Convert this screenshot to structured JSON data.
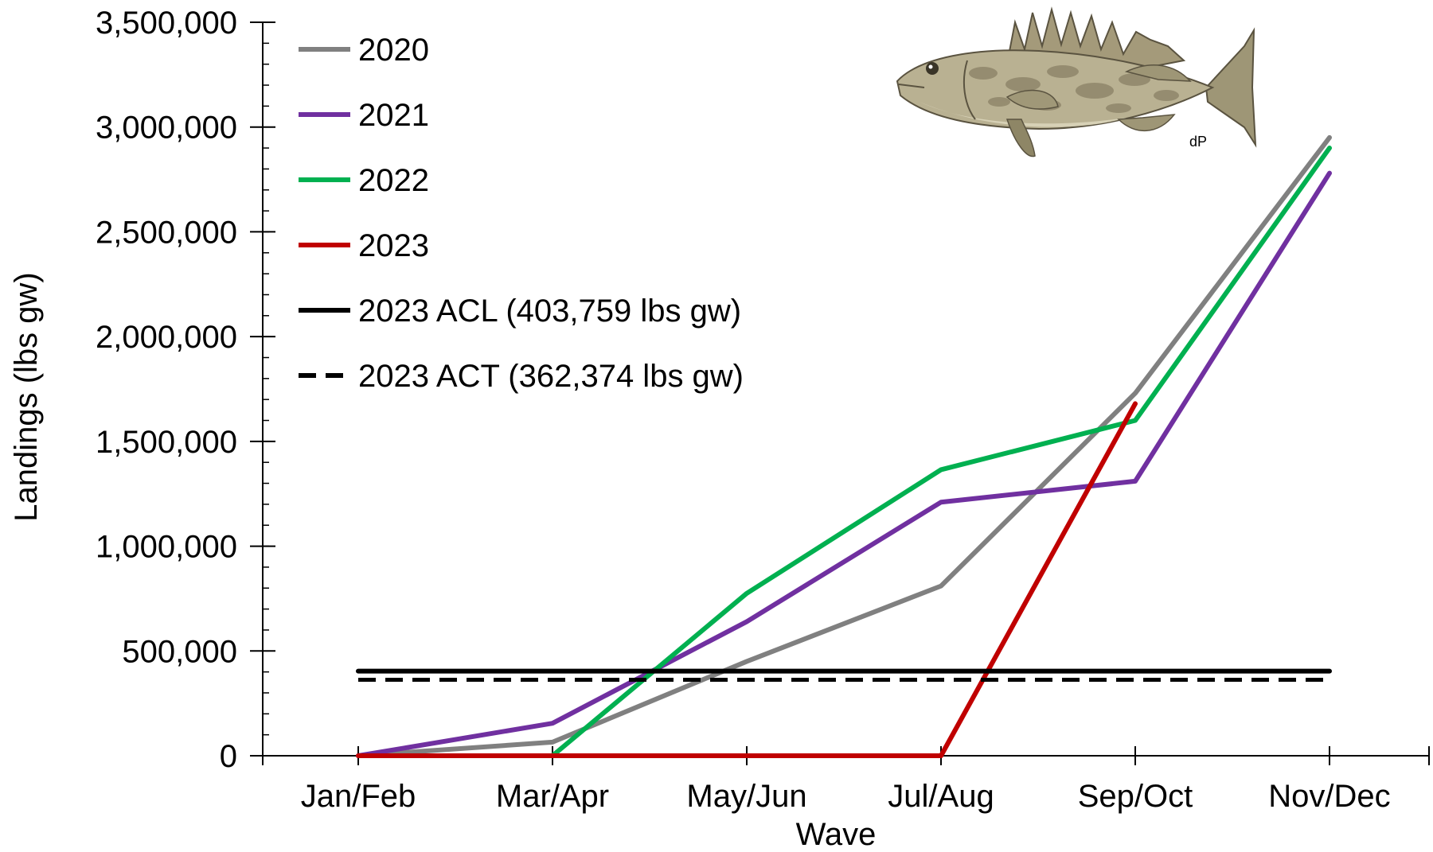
{
  "chart_data": {
    "type": "line",
    "title": "",
    "xlabel": "Wave",
    "ylabel": "Landings (lbs gw)",
    "categories": [
      "Jan/Feb",
      "Mar/Apr",
      "May/Jun",
      "Jul/Aug",
      "Sep/Oct",
      "Nov/Dec"
    ],
    "ylim": [
      0,
      3500000
    ],
    "yticks": [
      0,
      500000,
      1000000,
      1500000,
      2000000,
      2500000,
      3000000,
      3500000
    ],
    "ytick_labels": [
      "0",
      "500,000",
      "1,000,000",
      "1,500,000",
      "2,000,000",
      "2,500,000",
      "3,000,000",
      "3,500,000"
    ],
    "grid": false,
    "legend_position": "top-left",
    "series": [
      {
        "name": "2020",
        "color": "#808080",
        "dash": "solid",
        "values": [
          0,
          65000,
          450000,
          810000,
          1730000,
          2950000
        ]
      },
      {
        "name": "2021",
        "color": "#7030A0",
        "dash": "solid",
        "values": [
          0,
          155000,
          640000,
          1210000,
          1310000,
          2780000
        ]
      },
      {
        "name": "2022",
        "color": "#00B050",
        "dash": "solid",
        "values": [
          null,
          0,
          775000,
          1365000,
          1600000,
          2900000
        ]
      },
      {
        "name": "2023",
        "color": "#C00000",
        "dash": "solid",
        "values": [
          0,
          0,
          0,
          0,
          1680000,
          null
        ]
      },
      {
        "name": "2023 ACL (403,759 lbs gw)",
        "color": "#000000",
        "dash": "solid",
        "values": [
          403759,
          403759,
          403759,
          403759,
          403759,
          403759
        ]
      },
      {
        "name": "2023 ACT (362,374 lbs gw)",
        "color": "#000000",
        "dash": "dashed",
        "values": [
          362374,
          362374,
          362374,
          362374,
          362374,
          362374
        ]
      }
    ],
    "image": {
      "name": "gag-grouper-fish-illustration",
      "signature": "dP"
    }
  }
}
